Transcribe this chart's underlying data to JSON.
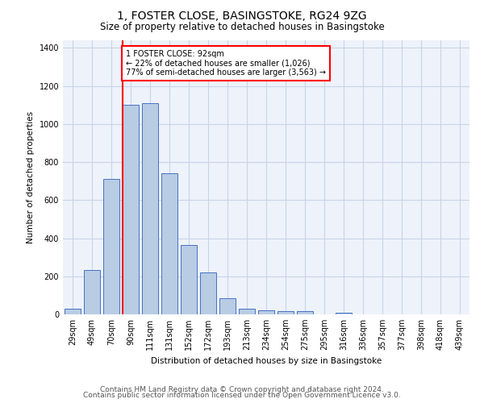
{
  "title": "1, FOSTER CLOSE, BASINGSTOKE, RG24 9ZG",
  "subtitle": "Size of property relative to detached houses in Basingstoke",
  "xlabel": "Distribution of detached houses by size in Basingstoke",
  "ylabel": "Number of detached properties",
  "categories": [
    "29sqm",
    "49sqm",
    "70sqm",
    "90sqm",
    "111sqm",
    "131sqm",
    "152sqm",
    "172sqm",
    "193sqm",
    "213sqm",
    "234sqm",
    "254sqm",
    "275sqm",
    "295sqm",
    "316sqm",
    "336sqm",
    "357sqm",
    "377sqm",
    "398sqm",
    "418sqm",
    "439sqm"
  ],
  "values": [
    30,
    235,
    710,
    1100,
    1110,
    740,
    365,
    220,
    85,
    30,
    20,
    15,
    15,
    0,
    10,
    0,
    0,
    0,
    0,
    0,
    0
  ],
  "bar_color": "#b8cce4",
  "bar_edge_color": "#4472c4",
  "annotation_text": "1 FOSTER CLOSE: 92sqm\n← 22% of detached houses are smaller (1,026)\n77% of semi-detached houses are larger (3,563) →",
  "ylim": [
    0,
    1440
  ],
  "yticks": [
    0,
    200,
    400,
    600,
    800,
    1000,
    1200,
    1400
  ],
  "footer_line1": "Contains HM Land Registry data © Crown copyright and database right 2024.",
  "footer_line2": "Contains public sector information licensed under the Open Government Licence v3.0.",
  "bg_color": "#eef2fa",
  "grid_color": "#c8d4e8",
  "title_fontsize": 10,
  "subtitle_fontsize": 8.5,
  "axis_label_fontsize": 7.5,
  "tick_fontsize": 7,
  "footer_fontsize": 6.5
}
